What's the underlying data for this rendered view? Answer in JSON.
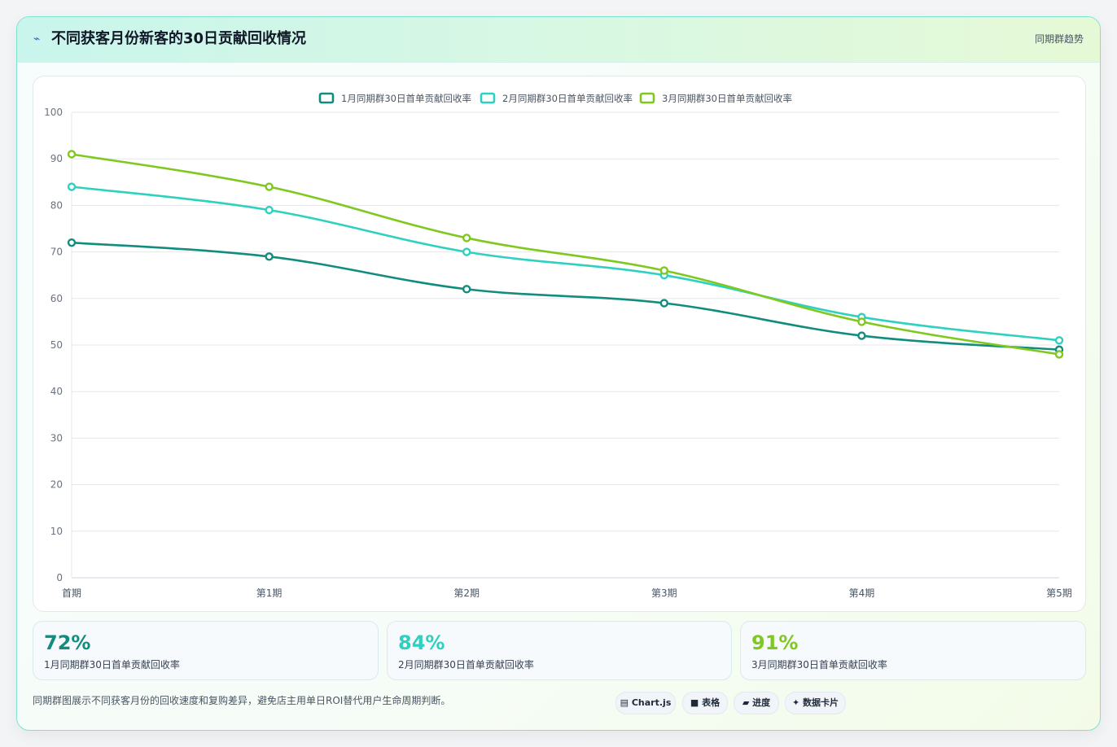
{
  "header": {
    "icon": "sparkline-icon",
    "title": "不同获客月份新客的30日贡献回收情况",
    "tag": "同期群趋势"
  },
  "colors": {
    "series1": "#128c7e",
    "series2": "#2ed1c0",
    "series3": "#7fc81e"
  },
  "chart_data": {
    "type": "line",
    "categories": [
      "首期",
      "第1期",
      "第2期",
      "第3期",
      "第4期",
      "第5期"
    ],
    "series": [
      {
        "name": "1月同期群30日首单贡献回收率",
        "values": [
          72,
          69,
          62,
          59,
          52,
          49
        ],
        "color": "#128c7e"
      },
      {
        "name": "2月同期群30日首单贡献回收率",
        "values": [
          84,
          79,
          70,
          65,
          56,
          51
        ],
        "color": "#2ed1c0"
      },
      {
        "name": "3月同期群30日首单贡献回收率",
        "values": [
          91,
          84,
          73,
          66,
          55,
          48
        ],
        "color": "#7fc81e"
      }
    ],
    "ylim": [
      0,
      100
    ],
    "yticks": [
      0,
      10,
      20,
      30,
      40,
      50,
      60,
      70,
      80,
      90,
      100
    ],
    "grid": true,
    "legend": "top-center"
  },
  "stats": [
    {
      "value": "72%",
      "label": "1月同期群30日首单贡献回收率",
      "color": "#128c7e"
    },
    {
      "value": "84%",
      "label": "2月同期群30日首单贡献回收率",
      "color": "#2ed1c0"
    },
    {
      "value": "91%",
      "label": "3月同期群30日首单贡献回收率",
      "color": "#7fc81e"
    }
  ],
  "footer": {
    "note": "同期群图展示不同获客月份的回收速度和复购差异，避免店主用单日ROI替代用户生命周期判断。",
    "pills": [
      {
        "icon": "chart-icon",
        "glyph": "▤",
        "label": "Chart.js"
      },
      {
        "icon": "table-icon",
        "glyph": "■",
        "label": "表格"
      },
      {
        "icon": "progress-icon",
        "glyph": "▰",
        "label": "进度"
      },
      {
        "icon": "data-card-icon",
        "glyph": "✦",
        "label": "数据卡片"
      }
    ]
  }
}
